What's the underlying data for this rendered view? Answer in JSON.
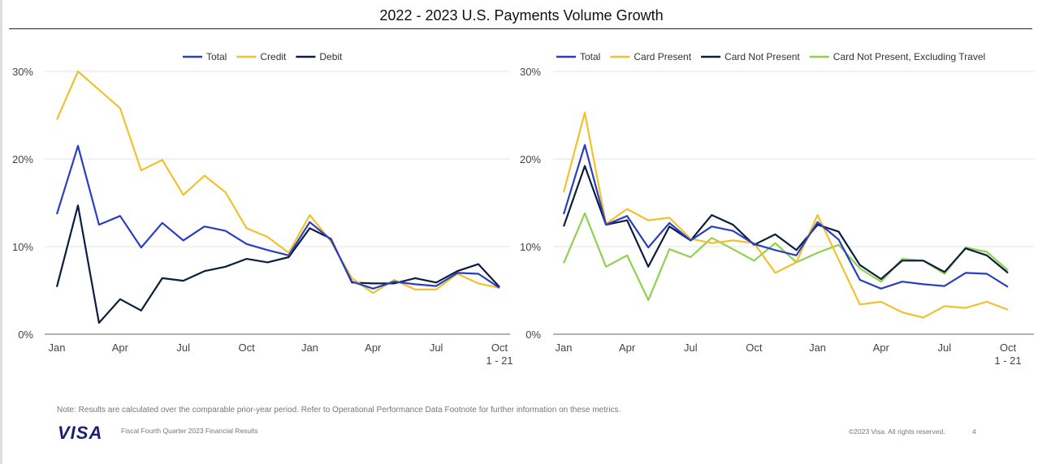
{
  "title": "2022 - 2023 U.S. Payments Volume Growth",
  "chart_data": [
    {
      "type": "line",
      "x_ticks": [
        "Jan",
        "Apr",
        "Jul",
        "Oct",
        "Jan",
        "Apr",
        "Jul",
        "Oct"
      ],
      "x_last_sub": "1 - 21",
      "y_ticks": [
        "0%",
        "10%",
        "20%",
        "30%"
      ],
      "ylim": [
        0,
        30
      ],
      "grid": true,
      "legend": "top-center",
      "series": [
        {
          "name": "Total",
          "color": "#2a3fc0",
          "values": [
            13.7,
            21.5,
            12.5,
            13.5,
            9.9,
            12.7,
            10.7,
            12.3,
            11.8,
            10.3,
            9.6,
            9.0,
            12.8,
            10.8,
            6.0,
            5.2,
            6.0,
            5.7,
            5.5,
            7.0,
            6.9,
            5.3
          ]
        },
        {
          "name": "Credit",
          "color": "#f2c12e",
          "values": [
            24.5,
            30.0,
            27.9,
            25.8,
            18.7,
            19.9,
            15.9,
            18.1,
            16.2,
            12.1,
            11.1,
            9.3,
            13.6,
            10.6,
            6.4,
            4.7,
            6.2,
            5.1,
            5.1,
            6.9,
            5.8,
            5.3
          ]
        },
        {
          "name": "Debit",
          "color": "#0c1d3f",
          "values": [
            5.4,
            14.7,
            1.3,
            4.0,
            2.7,
            6.4,
            6.1,
            7.2,
            7.7,
            8.6,
            8.2,
            8.8,
            12.1,
            10.9,
            5.9,
            5.8,
            5.8,
            6.4,
            5.9,
            7.2,
            8.0,
            5.4
          ]
        }
      ]
    },
    {
      "type": "line",
      "x_ticks": [
        "Jan",
        "Apr",
        "Jul",
        "Oct",
        "Jan",
        "Apr",
        "Jul",
        "Oct"
      ],
      "x_last_sub": "1 - 21",
      "y_ticks": [
        "0%",
        "10%",
        "20%",
        "30%"
      ],
      "ylim": [
        0,
        30
      ],
      "grid": true,
      "legend": "top-center",
      "series": [
        {
          "name": "Total",
          "color": "#2a3fc0",
          "values": [
            13.7,
            21.6,
            12.5,
            13.5,
            9.9,
            12.7,
            10.7,
            12.3,
            11.8,
            10.3,
            9.6,
            9.0,
            12.8,
            10.8,
            6.2,
            5.2,
            6.0,
            5.7,
            5.5,
            7.0,
            6.9,
            5.4
          ]
        },
        {
          "name": "Card Present",
          "color": "#f2c12e",
          "values": [
            16.2,
            25.3,
            12.6,
            14.3,
            13.0,
            13.3,
            10.9,
            10.4,
            10.7,
            10.4,
            7.0,
            8.2,
            13.6,
            8.5,
            3.4,
            3.7,
            2.5,
            1.9,
            3.2,
            3.0,
            3.7,
            2.8
          ]
        },
        {
          "name": "Card Not Present",
          "color": "#0c1d3f",
          "values": [
            12.3,
            19.2,
            12.5,
            13.0,
            7.7,
            12.3,
            10.7,
            13.6,
            12.5,
            10.2,
            11.4,
            9.6,
            12.5,
            11.7,
            7.9,
            6.3,
            8.4,
            8.4,
            7.1,
            9.8,
            9.0,
            7.0
          ]
        },
        {
          "name": "Card Not Present, Excluding Travel",
          "color": "#8fd14f",
          "values": [
            8.1,
            13.8,
            7.7,
            9.0,
            3.9,
            9.7,
            8.8,
            11.0,
            9.7,
            8.4,
            10.4,
            8.2,
            9.3,
            10.2,
            7.5,
            6.0,
            8.6,
            8.4,
            6.9,
            9.9,
            9.4,
            7.3
          ]
        }
      ]
    }
  ],
  "footer": {
    "note": "Note: Results are calculated over the comparable prior-year period. Refer to Operational Performance Data Footnote for further information on these metrics.",
    "logo": "VISA",
    "fiscal": "Fiscal Fourth Quarter 2023 Financial Results",
    "copyright": "©2023 Visa. All rights reserved.",
    "page": "4"
  }
}
